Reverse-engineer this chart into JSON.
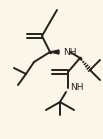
{
  "bg_color": "#fbf6e8",
  "bond_color": "#222222",
  "bond_width": 1.4,
  "text_color": "#222222",
  "font_size": 6.5,
  "font_size_small": 6.0
}
